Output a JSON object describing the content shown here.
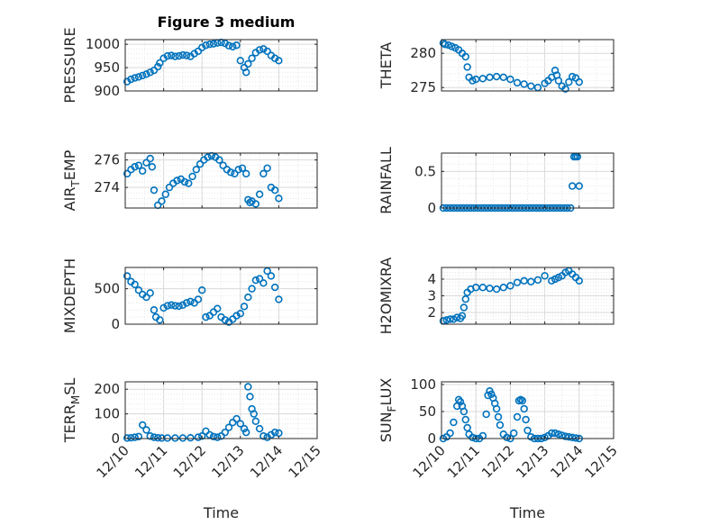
{
  "figure": {
    "title": "Figure 3 medium",
    "marker_color": "#0072BD"
  },
  "chart_data": [
    {
      "id": "pressure",
      "type": "scatter",
      "ylabel_parts": [
        "PRESSURE"
      ],
      "title": "Figure 3 medium",
      "xlim": [
        0,
        5
      ],
      "ylim": [
        900,
        1010
      ],
      "yticks": [
        900,
        950,
        1000
      ],
      "show_xticklabels": false,
      "grid": true,
      "x": [
        0.05,
        0.15,
        0.25,
        0.35,
        0.45,
        0.55,
        0.65,
        0.75,
        0.85,
        0.9,
        1.0,
        1.1,
        1.2,
        1.3,
        1.4,
        1.5,
        1.6,
        1.7,
        1.8,
        1.9,
        2.0,
        2.1,
        2.2,
        2.3,
        2.4,
        2.5,
        2.6,
        2.7,
        2.8,
        2.9,
        3.0,
        3.1,
        3.15,
        3.2,
        3.3,
        3.4,
        3.5,
        3.6,
        3.7,
        3.8,
        3.9,
        4.0
      ],
      "y": [
        920,
        925,
        928,
        930,
        933,
        936,
        940,
        944,
        952,
        960,
        970,
        975,
        976,
        974,
        975,
        977,
        976,
        974,
        980,
        985,
        993,
        998,
        1000,
        1001,
        1003,
        1004,
        1002,
        997,
        995,
        998,
        965,
        950,
        940,
        958,
        970,
        982,
        988,
        990,
        985,
        976,
        970,
        965
      ]
    },
    {
      "id": "theta",
      "type": "scatter",
      "ylabel_parts": [
        "THETA"
      ],
      "xlim": [
        0,
        5
      ],
      "ylim": [
        274.5,
        282
      ],
      "yticks": [
        275,
        280
      ],
      "show_xticklabels": false,
      "grid": true,
      "x": [
        0.05,
        0.1,
        0.2,
        0.3,
        0.4,
        0.5,
        0.6,
        0.7,
        0.75,
        0.8,
        0.9,
        1.0,
        1.2,
        1.4,
        1.6,
        1.8,
        2.0,
        2.2,
        2.4,
        2.6,
        2.8,
        3.0,
        3.1,
        3.2,
        3.3,
        3.35,
        3.4,
        3.5,
        3.6,
        3.7,
        3.8,
        3.9,
        4.0
      ],
      "y": [
        281.5,
        281.3,
        281.2,
        281.0,
        280.8,
        280.5,
        280.0,
        279.5,
        278.0,
        276.5,
        276.0,
        276.2,
        276.3,
        276.5,
        276.6,
        276.5,
        276.2,
        275.7,
        275.5,
        275.2,
        275.0,
        275.6,
        276.0,
        276.5,
        277.5,
        276.8,
        276.0,
        275.2,
        274.8,
        275.8,
        276.6,
        276.4,
        275.8
      ]
    },
    {
      "id": "air_temp",
      "type": "scatter",
      "ylabel_parts": [
        "AIR",
        "T",
        "EMP"
      ],
      "xlim": [
        0,
        5
      ],
      "ylim": [
        272.5,
        276.5
      ],
      "yticks": [
        274,
        276
      ],
      "show_xticklabels": false,
      "grid": true,
      "x": [
        0.05,
        0.15,
        0.25,
        0.35,
        0.45,
        0.55,
        0.65,
        0.7,
        0.75,
        0.85,
        0.95,
        1.05,
        1.15,
        1.25,
        1.35,
        1.45,
        1.55,
        1.65,
        1.75,
        1.85,
        1.95,
        2.05,
        2.15,
        2.25,
        2.35,
        2.45,
        2.55,
        2.65,
        2.75,
        2.85,
        2.95,
        3.05,
        3.15,
        3.2,
        3.25,
        3.3,
        3.4,
        3.5,
        3.6,
        3.7,
        3.8,
        3.9,
        4.0
      ],
      "y": [
        275.0,
        275.3,
        275.5,
        275.6,
        275.2,
        275.8,
        276.1,
        275.5,
        273.8,
        272.7,
        273.0,
        273.5,
        274.0,
        274.3,
        274.5,
        274.6,
        274.4,
        274.3,
        274.8,
        275.3,
        275.7,
        276.0,
        276.2,
        276.3,
        276.2,
        276.0,
        275.6,
        275.3,
        275.1,
        275.0,
        275.3,
        275.4,
        275.0,
        273.1,
        272.9,
        273.0,
        272.8,
        273.5,
        275.0,
        275.4,
        274.0,
        273.8,
        273.2
      ]
    },
    {
      "id": "rainfall",
      "type": "scatter",
      "ylabel_parts": [
        "RAINFALL"
      ],
      "xlim": [
        0,
        5
      ],
      "ylim": [
        0,
        0.75
      ],
      "yticks": [
        0,
        0.5
      ],
      "show_xticklabels": false,
      "grid": true,
      "x": [
        0.05,
        0.15,
        0.25,
        0.35,
        0.45,
        0.55,
        0.65,
        0.75,
        0.85,
        0.95,
        1.05,
        1.15,
        1.25,
        1.35,
        1.45,
        1.55,
        1.65,
        1.75,
        1.85,
        1.95,
        2.05,
        2.15,
        2.25,
        2.35,
        2.45,
        2.55,
        2.65,
        2.75,
        2.85,
        2.95,
        3.05,
        3.15,
        3.25,
        3.35,
        3.45,
        3.55,
        3.65,
        3.75,
        3.8,
        3.85,
        3.9,
        3.95,
        4.0
      ],
      "y": [
        0,
        0,
        0,
        0,
        0,
        0,
        0,
        0,
        0,
        0,
        0,
        0,
        0,
        0,
        0,
        0,
        0,
        0,
        0,
        0,
        0,
        0,
        0,
        0,
        0,
        0,
        0,
        0,
        0,
        0,
        0,
        0,
        0,
        0,
        0,
        0,
        0,
        0,
        0.3,
        0.7,
        0.7,
        0.7,
        0.3
      ]
    },
    {
      "id": "mixdepth",
      "type": "scatter",
      "ylabel_parts": [
        "MIXDEPTH"
      ],
      "xlim": [
        0,
        5
      ],
      "ylim": [
        0,
        800
      ],
      "yticks": [
        0,
        500
      ],
      "show_xticklabels": false,
      "grid": true,
      "x": [
        0.05,
        0.15,
        0.25,
        0.35,
        0.45,
        0.55,
        0.65,
        0.75,
        0.8,
        0.9,
        1.0,
        1.1,
        1.2,
        1.3,
        1.4,
        1.5,
        1.6,
        1.7,
        1.8,
        1.9,
        2.0,
        2.1,
        2.2,
        2.3,
        2.4,
        2.5,
        2.6,
        2.7,
        2.8,
        2.9,
        3.0,
        3.1,
        3.2,
        3.3,
        3.4,
        3.5,
        3.6,
        3.7,
        3.8,
        3.9,
        4.0
      ],
      "y": [
        680,
        600,
        560,
        480,
        420,
        380,
        440,
        200,
        100,
        60,
        230,
        260,
        270,
        260,
        255,
        270,
        300,
        320,
        300,
        350,
        480,
        100,
        120,
        170,
        220,
        100,
        60,
        30,
        70,
        120,
        150,
        250,
        380,
        500,
        620,
        640,
        580,
        750,
        680,
        520,
        350
      ]
    },
    {
      "id": "h2omixra",
      "type": "scatter",
      "ylabel_parts": [
        "H2OMIXRA"
      ],
      "xlim": [
        0,
        5
      ],
      "ylim": [
        1.3,
        4.7
      ],
      "yticks": [
        2,
        3,
        4
      ],
      "show_xticklabels": false,
      "grid": true,
      "x": [
        0.05,
        0.15,
        0.25,
        0.35,
        0.45,
        0.55,
        0.6,
        0.65,
        0.7,
        0.75,
        0.85,
        1.0,
        1.2,
        1.4,
        1.6,
        1.8,
        2.0,
        2.2,
        2.4,
        2.6,
        2.8,
        3.0,
        3.2,
        3.3,
        3.4,
        3.5,
        3.6,
        3.7,
        3.8,
        3.9,
        4.0
      ],
      "y": [
        1.5,
        1.55,
        1.6,
        1.6,
        1.7,
        1.65,
        1.8,
        2.3,
        2.8,
        3.2,
        3.4,
        3.5,
        3.5,
        3.45,
        3.4,
        3.5,
        3.6,
        3.8,
        3.9,
        3.85,
        3.95,
        4.2,
        3.9,
        4.0,
        4.1,
        4.2,
        4.4,
        4.5,
        4.3,
        4.1,
        3.9
      ]
    },
    {
      "id": "terr_msl",
      "type": "scatter",
      "ylabel_parts": [
        "TERR",
        "M",
        "SL"
      ],
      "xlim": [
        0,
        5
      ],
      "ylim": [
        0,
        230
      ],
      "yticks": [
        0,
        100,
        200
      ],
      "show_xticklabels": true,
      "xticklabels": [
        "12/10",
        "12/11",
        "12/12",
        "12/13",
        "12/14",
        "12/15"
      ],
      "xlabel": "Time",
      "grid": true,
      "x": [
        0.05,
        0.15,
        0.25,
        0.35,
        0.45,
        0.55,
        0.65,
        0.75,
        0.85,
        0.95,
        1.1,
        1.3,
        1.5,
        1.7,
        1.9,
        2.0,
        2.1,
        2.2,
        2.3,
        2.4,
        2.5,
        2.6,
        2.7,
        2.8,
        2.9,
        3.0,
        3.1,
        3.15,
        3.2,
        3.25,
        3.3,
        3.35,
        3.4,
        3.5,
        3.6,
        3.7,
        3.8,
        3.9,
        4.0
      ],
      "y": [
        2,
        3,
        5,
        8,
        55,
        35,
        10,
        5,
        3,
        2,
        2,
        2,
        2,
        3,
        5,
        10,
        30,
        15,
        8,
        5,
        10,
        25,
        45,
        65,
        80,
        60,
        40,
        25,
        210,
        170,
        120,
        100,
        70,
        40,
        10,
        5,
        15,
        25,
        22
      ]
    },
    {
      "id": "sun_flux",
      "type": "scatter",
      "ylabel_parts": [
        "SUN",
        "F",
        "LUX"
      ],
      "xlim": [
        0,
        5
      ],
      "ylim": [
        0,
        105
      ],
      "yticks": [
        0,
        50,
        100
      ],
      "show_xticklabels": true,
      "xticklabels": [
        "12/10",
        "12/11",
        "12/12",
        "12/13",
        "12/14",
        "12/15"
      ],
      "xlabel": "Time",
      "grid": true,
      "x": [
        0.05,
        0.15,
        0.25,
        0.35,
        0.45,
        0.5,
        0.55,
        0.6,
        0.65,
        0.7,
        0.75,
        0.8,
        0.9,
        1.0,
        1.1,
        1.2,
        1.3,
        1.35,
        1.4,
        1.45,
        1.5,
        1.55,
        1.6,
        1.65,
        1.7,
        1.8,
        1.9,
        2.0,
        2.1,
        2.2,
        2.25,
        2.3,
        2.35,
        2.4,
        2.45,
        2.5,
        2.6,
        2.7,
        2.8,
        2.9,
        3.0,
        3.1,
        3.2,
        3.3,
        3.4,
        3.5,
        3.6,
        3.7,
        3.8,
        3.9,
        4.0
      ],
      "y": [
        0,
        3,
        10,
        30,
        60,
        72,
        68,
        60,
        50,
        35,
        20,
        8,
        2,
        0,
        0,
        5,
        45,
        80,
        88,
        82,
        75,
        65,
        55,
        40,
        25,
        8,
        2,
        0,
        10,
        40,
        70,
        72,
        70,
        55,
        35,
        15,
        3,
        0,
        0,
        0,
        2,
        5,
        10,
        10,
        8,
        6,
        4,
        3,
        2,
        1,
        0
      ]
    }
  ]
}
